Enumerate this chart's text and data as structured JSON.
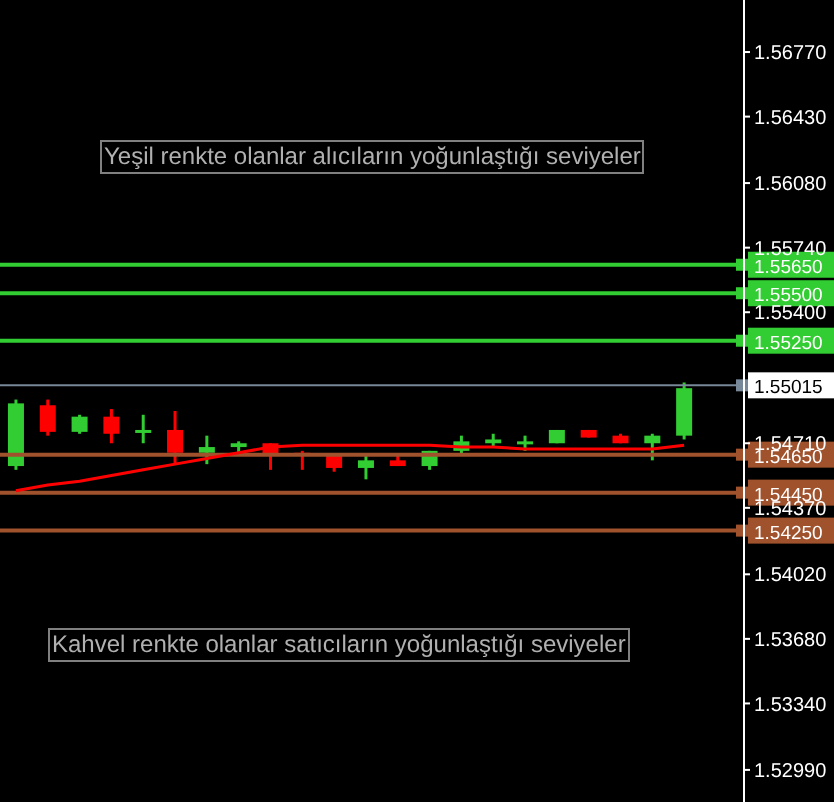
{
  "chart_data": {
    "type": "candlestick",
    "categories": [
      null,
      null,
      null,
      null,
      null,
      null,
      null,
      null,
      null,
      null,
      null,
      null,
      null,
      null,
      null,
      null,
      null,
      null,
      null,
      null,
      null,
      null
    ],
    "ohlc": [
      [
        1.5459,
        1.5494,
        1.5457,
        1.5492
      ],
      [
        1.5491,
        1.5494,
        1.5475,
        1.5477
      ],
      [
        1.5477,
        1.5486,
        1.5476,
        1.5485
      ],
      [
        1.5485,
        1.5489,
        1.5471,
        1.5476
      ],
      [
        1.5477,
        1.5486,
        1.5471,
        1.5478
      ],
      [
        1.5478,
        1.5488,
        1.546,
        1.5466
      ],
      [
        1.5466,
        1.5475,
        1.546,
        1.5469
      ],
      [
        1.5469,
        1.5472,
        1.5466,
        1.5471
      ],
      [
        1.5471,
        1.5471,
        1.5457,
        1.5465
      ],
      [
        1.5466,
        1.5467,
        1.5457,
        1.5465
      ],
      [
        1.5465,
        1.5465,
        1.5456,
        1.5458
      ],
      [
        1.5458,
        1.5465,
        1.5452,
        1.5462
      ],
      [
        1.5462,
        1.5465,
        1.5459,
        1.5459
      ],
      [
        1.5459,
        1.5467,
        1.5457,
        1.5467
      ],
      [
        1.5467,
        1.5475,
        1.5465,
        1.5472
      ],
      [
        1.5471,
        1.5476,
        1.5469,
        1.5473
      ],
      [
        1.5471,
        1.5475,
        1.5467,
        1.5472
      ],
      [
        1.5471,
        1.5478,
        1.5471,
        1.5478
      ],
      [
        1.5478,
        1.5478,
        1.5474,
        1.5474
      ],
      [
        1.5475,
        1.5476,
        1.5471,
        1.5471
      ],
      [
        1.5471,
        1.5476,
        1.5462,
        1.5475
      ],
      [
        1.5475,
        1.5503,
        1.5473,
        1.55
      ]
    ],
    "colors": [
      "#32cd32",
      "#ff0000",
      "#32cd32",
      "#ff0000",
      "#32cd32",
      "#ff0000",
      "#32cd32",
      "#32cd32",
      "#ff0000",
      "#ff0000",
      "#ff0000",
      "#32cd32",
      "#ff0000",
      "#32cd32",
      "#32cd32",
      "#32cd32",
      "#32cd32",
      "#32cd32",
      "#ff0000",
      "#ff0000",
      "#32cd32",
      "#32cd32"
    ],
    "series": [
      {
        "type": "line",
        "color": "#ff0000",
        "values": [
          1.5446,
          1.5449,
          1.5451,
          1.5454,
          1.5457,
          1.546,
          1.5463,
          1.5466,
          1.5469,
          1.547,
          1.547,
          1.547,
          1.547,
          1.547,
          1.5469,
          1.5469,
          1.5468,
          1.5468,
          1.5468,
          1.5468,
          1.5468,
          1.547
        ]
      }
    ],
    "ylim": [
      1.52821,
      1.57044
    ],
    "yticks": [
      {
        "value": 1.5299,
        "label": "1.52990"
      },
      {
        "value": 1.5334,
        "label": "1.53340"
      },
      {
        "value": 1.5368,
        "label": "1.53680"
      },
      {
        "value": 1.5402,
        "label": "1.54020"
      },
      {
        "value": 1.5437,
        "label": "1.54370"
      },
      {
        "value": 1.5471,
        "label": "1.54710"
      },
      {
        "value": 1.554,
        "label": "1.55400"
      },
      {
        "value": 1.5574,
        "label": "1.55740"
      },
      {
        "value": 1.5608,
        "label": "1.56080"
      },
      {
        "value": 1.5643,
        "label": "1.56430"
      },
      {
        "value": 1.5677,
        "label": "1.56770"
      }
    ],
    "ref_lines": [
      {
        "axis": "y",
        "value": 1.5565,
        "label": "1.55650",
        "color": "#32cd32"
      },
      {
        "axis": "y",
        "value": 1.555,
        "label": "1.55500",
        "color": "#32cd32"
      },
      {
        "axis": "y",
        "value": 1.5525,
        "label": "1.55250",
        "color": "#32cd32"
      },
      {
        "axis": "y",
        "value": 1.55015,
        "label": "1.55015",
        "color": "#778899"
      },
      {
        "axis": "y",
        "value": 1.5465,
        "label": "1.54650",
        "color": "#a0522d"
      },
      {
        "axis": "y",
        "value": 1.5445,
        "label": "1.54450",
        "color": "#a0522d"
      },
      {
        "axis": "y",
        "value": 1.5425,
        "label": "1.54250",
        "color": "#a0522d"
      }
    ],
    "annotations": [
      "Yeşil renkte olanlar alıcıların yoğunlaştığı seviyeler",
      "Kahvel renkte olanlar satıcıların yoğunlaştığı seviyeler"
    ]
  }
}
